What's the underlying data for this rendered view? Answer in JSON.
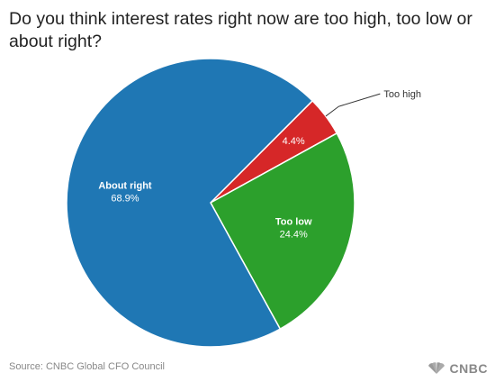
{
  "title": "Do you think interest rates right now are too high, too low or about right?",
  "source": "Source: CNBC Global CFO Council",
  "brand": "CNBC",
  "chart_data": {
    "type": "pie",
    "title": "Do you think interest rates right now are too high, too low or about right?",
    "slices": [
      {
        "label": "Too high",
        "value": 4.4,
        "value_label": "4.4%",
        "color": "#d62728"
      },
      {
        "label": "Too low",
        "value": 24.4,
        "value_label": "24.4%",
        "color": "#2ca02c"
      },
      {
        "label": "About right",
        "value": 68.9,
        "value_label": "68.9%",
        "color": "#1f77b4"
      }
    ],
    "start": "top-right, clockwise",
    "legend": "none (labels on slices, callout for Too high)"
  }
}
